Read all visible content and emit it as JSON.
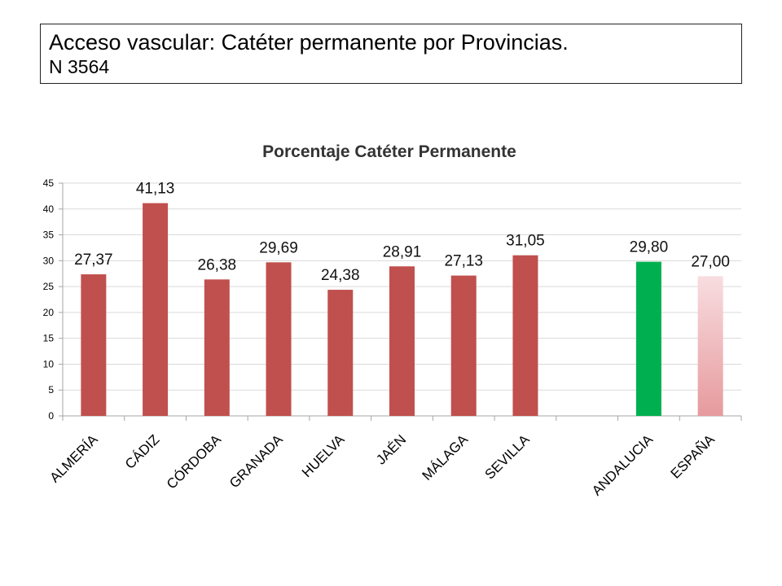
{
  "slide": {
    "title": "Acceso vascular: Catéter permanente por Provincias.",
    "subtitle": "N 3564"
  },
  "chart_data": {
    "type": "bar",
    "title": "Porcentaje Catéter Permanente",
    "xlabel": "",
    "ylabel": "",
    "ylim": [
      0,
      45
    ],
    "yticks": [
      "0",
      "5",
      "10",
      "15",
      "20",
      "25",
      "30",
      "35",
      "40",
      "45"
    ],
    "grid": true,
    "legend": "none",
    "categories": [
      "ALMERÍA",
      "CÁDIZ",
      "CÓRDOBA",
      "GRANADA",
      "HUELVA",
      "JAÉN",
      "MÁLAGA",
      "SEVILLA",
      "",
      "ANDALUCIA",
      "ESPAÑA"
    ],
    "values": [
      27.37,
      41.13,
      26.38,
      29.69,
      24.38,
      28.91,
      27.13,
      31.05,
      null,
      29.8,
      27.0
    ],
    "data_labels": [
      "27,37",
      "41,13",
      "26,38",
      "29,69",
      "24,38",
      "28,91",
      "27,13",
      "31,05",
      "",
      "29,80",
      "27,00"
    ],
    "colors": {
      "provinces": "#c0504d",
      "andalucia": "#00b050",
      "espana_top": "#f8dde0",
      "espana_bottom": "#e69a9d",
      "grid": "#d9d9d9",
      "axis": "#a6a6a6"
    }
  }
}
